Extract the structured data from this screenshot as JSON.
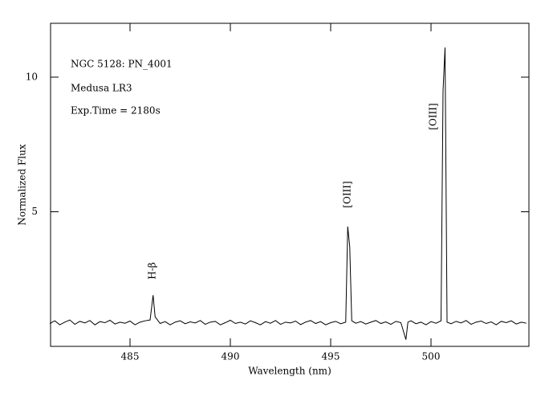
{
  "chart_data": {
    "type": "line",
    "xlabel": "Wavelength (nm)",
    "ylabel": "Normalized Flux",
    "notes": [
      "NGC 5128: PN_4001",
      "Medusa LR3",
      "Exp.Time = 2180s"
    ],
    "line_labels": [
      "H-β",
      "[OIII]",
      "[OIII]"
    ],
    "color": "#000000",
    "xlim": [
      481.04,
      504.88
    ],
    "ylim": [
      0,
      12
    ],
    "xticks": [
      485,
      490,
      495,
      500
    ],
    "yticks": [
      5,
      10
    ],
    "x": [
      481.0,
      481.25,
      481.5,
      481.75,
      482.0,
      482.25,
      482.5,
      482.75,
      483.0,
      483.25,
      483.5,
      483.75,
      484.0,
      484.25,
      484.5,
      484.75,
      485.0,
      485.25,
      485.5,
      485.75,
      486.0,
      486.15,
      486.25,
      486.5,
      486.75,
      487.0,
      487.25,
      487.5,
      487.75,
      488.0,
      488.25,
      488.5,
      488.75,
      489.0,
      489.25,
      489.5,
      489.75,
      490.0,
      490.25,
      490.5,
      490.75,
      491.0,
      491.25,
      491.5,
      491.75,
      492.0,
      492.25,
      492.5,
      492.75,
      493.0,
      493.25,
      493.5,
      493.75,
      494.0,
      494.25,
      494.5,
      494.75,
      495.0,
      495.25,
      495.5,
      495.75,
      495.85,
      495.95,
      496.05,
      496.25,
      496.5,
      496.75,
      497.0,
      497.25,
      497.5,
      497.75,
      498.0,
      498.25,
      498.5,
      498.75,
      498.85,
      499.0,
      499.25,
      499.5,
      499.75,
      500.0,
      500.25,
      500.5,
      500.6,
      500.7,
      500.8,
      501.0,
      501.25,
      501.5,
      501.75,
      502.0,
      502.25,
      502.5,
      502.75,
      503.0,
      503.25,
      503.5,
      503.75,
      504.0,
      504.25,
      504.5,
      504.75
    ],
    "values": [
      0.85,
      0.95,
      0.8,
      0.9,
      0.98,
      0.82,
      0.93,
      0.87,
      0.96,
      0.8,
      0.92,
      0.88,
      0.97,
      0.83,
      0.9,
      0.86,
      0.94,
      0.8,
      0.9,
      0.95,
      0.98,
      1.9,
      1.1,
      0.85,
      0.92,
      0.8,
      0.9,
      0.95,
      0.84,
      0.91,
      0.87,
      0.96,
      0.82,
      0.9,
      0.93,
      0.8,
      0.88,
      0.97,
      0.85,
      0.9,
      0.83,
      0.95,
      0.88,
      0.8,
      0.92,
      0.86,
      0.96,
      0.82,
      0.9,
      0.87,
      0.94,
      0.81,
      0.9,
      0.96,
      0.85,
      0.92,
      0.8,
      0.88,
      0.93,
      0.84,
      0.9,
      4.45,
      3.7,
      0.95,
      0.86,
      0.92,
      0.83,
      0.9,
      0.96,
      0.85,
      0.91,
      0.82,
      0.93,
      0.88,
      0.25,
      0.9,
      0.95,
      0.84,
      0.9,
      0.8,
      0.92,
      0.86,
      0.95,
      9.5,
      11.1,
      0.9,
      0.84,
      0.93,
      0.87,
      0.96,
      0.82,
      0.9,
      0.94,
      0.85,
      0.91,
      0.8,
      0.93,
      0.88,
      0.95,
      0.83,
      0.9,
      0.86
    ]
  }
}
